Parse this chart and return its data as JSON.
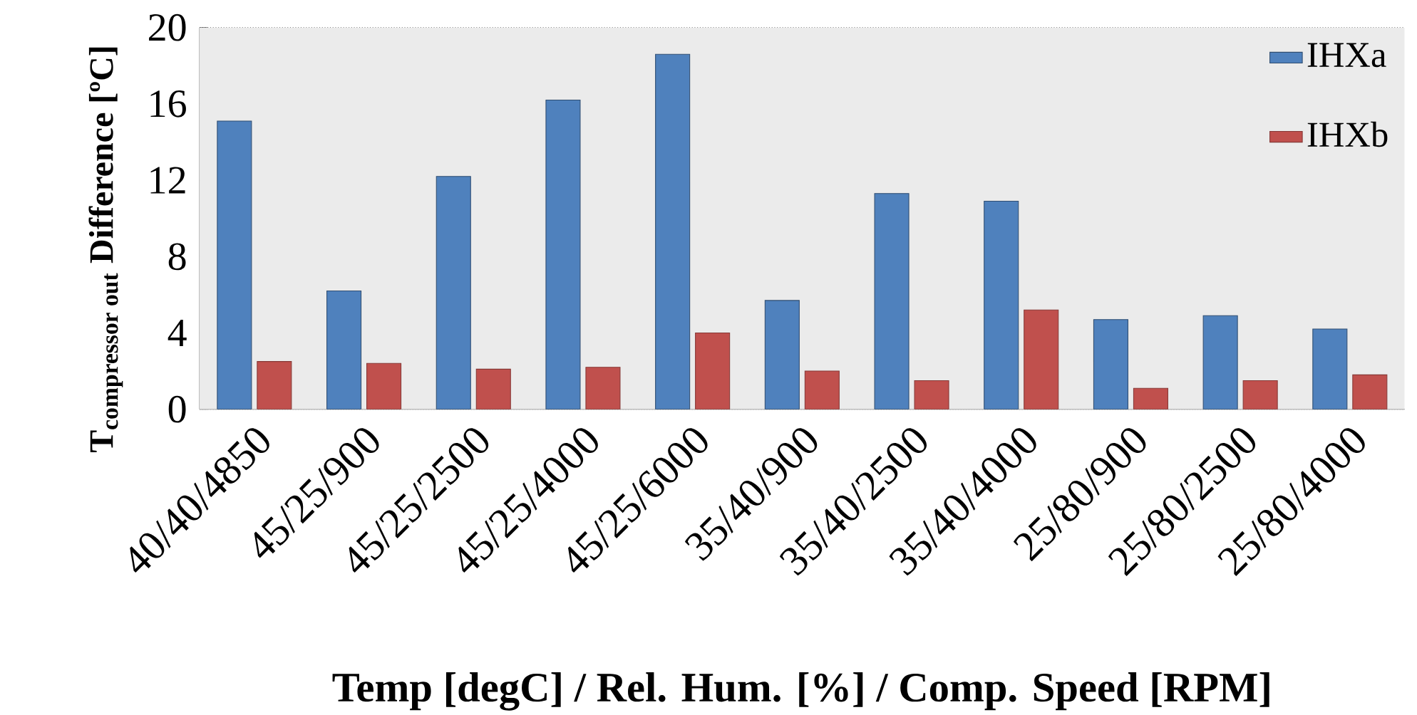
{
  "chart_data": {
    "type": "bar",
    "xlabel": "Temp [degC] / Rel. Hum. [%] / Comp. Speed [RPM]",
    "ylabel": "\\textbf{T}_{\\textbf{compressor out}}\\textbf{ Difference [ºC]}",
    "categories": [
      "40/40/4850",
      "45/25/900",
      "45/25/2500",
      "45/25/4000",
      "45/25/6000",
      "35/40/900",
      "35/40/2500",
      "35/40/4000",
      "25/80/900",
      "25/80/2500",
      "25/80/4000"
    ],
    "series": [
      {
        "name": "IHXa",
        "color": "#4f81bd",
        "values": [
          15.1,
          6.2,
          12.2,
          16.2,
          18.6,
          5.7,
          11.3,
          10.9,
          4.7,
          4.9,
          4.2
        ]
      },
      {
        "name": "IHXb",
        "color": "#c0504d",
        "values": [
          2.5,
          2.4,
          2.1,
          2.2,
          4.0,
          2.0,
          1.5,
          5.2,
          1.1,
          1.5,
          1.8
        ]
      }
    ],
    "ylim": [
      0,
      20
    ],
    "yticks": [
      0,
      4,
      8,
      12,
      16,
      20
    ],
    "grid": "y",
    "legend": "top right"
  }
}
